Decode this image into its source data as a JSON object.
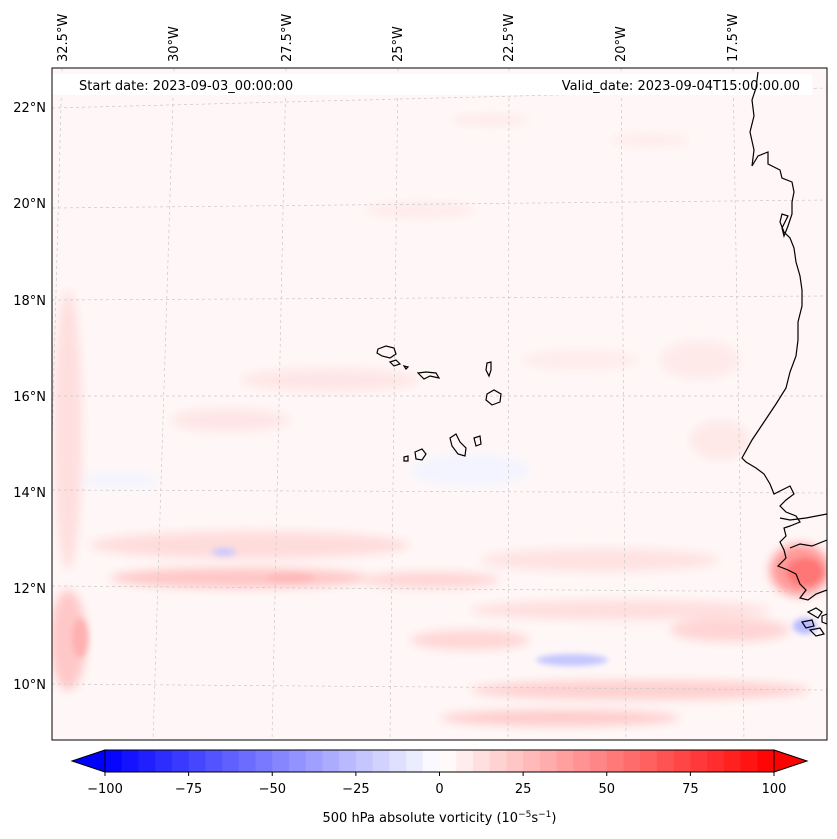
{
  "map": {
    "start_date_label": "Start date: 2023-09-03_00:00:00",
    "valid_date_label": "Valid_date: 2023-09-04T15:00:00.00",
    "lon_ticks": [
      "32.5°W",
      "30°W",
      "27.5°W",
      "25°W",
      "22.5°W",
      "20°W",
      "17.5°W"
    ],
    "lat_ticks": [
      "22°N",
      "20°N",
      "18°N",
      "16°N",
      "14°N",
      "12°N",
      "10°N"
    ],
    "field": "500 hPa absolute vorticity",
    "colors": {
      "negative_max": "#0000ff",
      "neutral": "#ffffff",
      "positive_max": "#ff0000",
      "coastline": "#000000",
      "gridline": "#bbbbbb"
    }
  },
  "colorbar": {
    "tick_labels": [
      "−100",
      "−75",
      "−50",
      "−25",
      "0",
      "25",
      "50",
      "75",
      "100"
    ],
    "min": -100,
    "max": 100,
    "label_prefix": "500 hPa absolute vorticity (10",
    "label_exp1": "−5",
    "label_mid": "s",
    "label_exp2": "−1",
    "label_suffix": ")"
  }
}
